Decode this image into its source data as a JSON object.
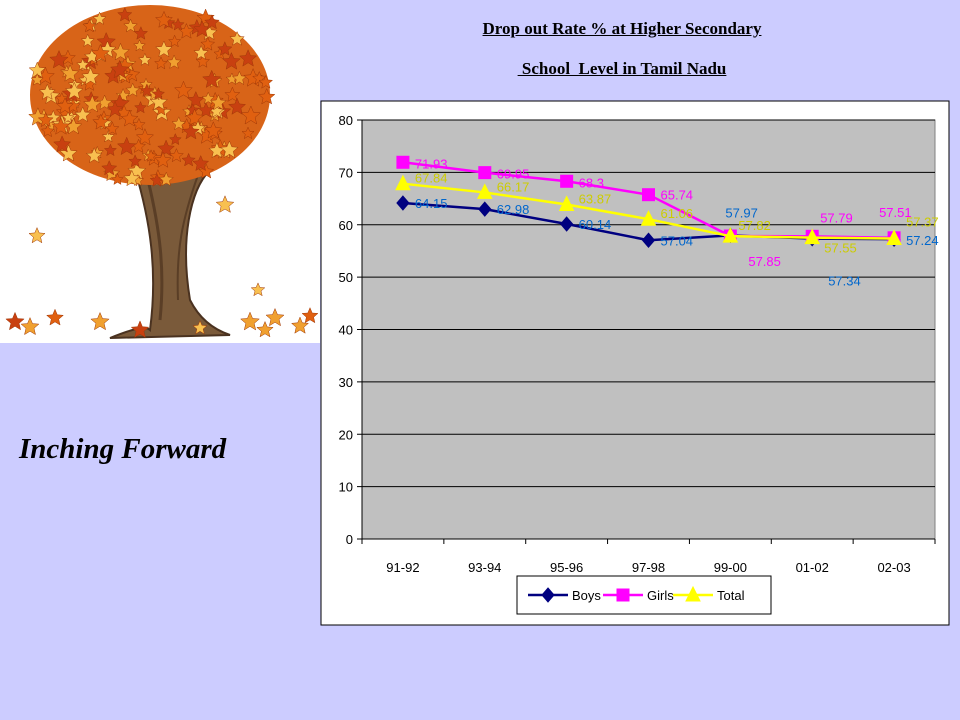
{
  "page": {
    "title_line_1": "Drop out Rate % at  Higher Secondary",
    "title_line_2": " School  Level in Tamil Nadu",
    "subtitle": "Inching Forward"
  },
  "chart_data": {
    "type": "line",
    "title": "",
    "xlabel": "",
    "ylabel": "",
    "categories": [
      "91-92",
      "93-94",
      "95-96",
      "97-98",
      "99-00",
      "01-02",
      "02-03"
    ],
    "ylim": [
      0,
      80
    ],
    "yticks": [
      0,
      10,
      20,
      30,
      40,
      50,
      60,
      70,
      80
    ],
    "grid": true,
    "legend": "bottom",
    "series": [
      {
        "name": "Boys",
        "values": [
          64.15,
          62.98,
          60.14,
          57.04,
          57.97,
          57.34,
          57.24
        ],
        "labels": [
          "64.15",
          "62.98",
          "60.14",
          "57.04",
          "57.97",
          "57.34",
          "57.24"
        ],
        "color": "#000080",
        "label_color": "#0066cc",
        "marker": "diamond"
      },
      {
        "name": "Girls",
        "values": [
          71.93,
          69.95,
          68.3,
          65.74,
          57.85,
          57.79,
          57.51
        ],
        "labels": [
          "71.93",
          "69.95",
          "68.3",
          "65.74",
          "57.85",
          "57.79",
          "57.51"
        ],
        "color": "#ff00ff",
        "label_color": "#ff00ff",
        "marker": "square"
      },
      {
        "name": "Total",
        "values": [
          67.84,
          66.17,
          63.87,
          61.06,
          57.82,
          57.55,
          57.37
        ],
        "labels": [
          "67.84",
          "66.17",
          "63.87",
          "61.06",
          "57.82",
          "57.55",
          "57.37"
        ],
        "color": "#ffff00",
        "label_color": "#cccc00",
        "marker": "triangle"
      }
    ]
  },
  "colors": {
    "background": "#ccccff",
    "plot_area": "#c0c0c0",
    "leaf_orange": "#e06010",
    "leaf_gold": "#f0a030",
    "trunk": "#7a5a3a"
  }
}
